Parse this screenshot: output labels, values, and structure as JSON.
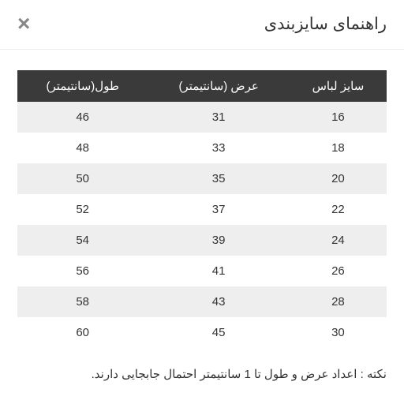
{
  "header": {
    "title": "راهنمای سایزبندی",
    "close_label": "×"
  },
  "table": {
    "columns": [
      "سایز لباس",
      "عرض (سانتیمتر)",
      "طول(سانتیمتر)"
    ],
    "rows": [
      [
        "16",
        "31",
        "46"
      ],
      [
        "18",
        "33",
        "48"
      ],
      [
        "20",
        "35",
        "50"
      ],
      [
        "22",
        "37",
        "52"
      ],
      [
        "24",
        "39",
        "54"
      ],
      [
        "26",
        "41",
        "56"
      ],
      [
        "28",
        "43",
        "58"
      ],
      [
        "30",
        "45",
        "60"
      ]
    ],
    "header_bg": "#3a3a3a",
    "header_color": "#ffffff",
    "row_odd_bg": "#eeeeee",
    "row_even_bg": "#ffffff",
    "text_color": "#333333",
    "font_size": 15
  },
  "note": "نکته : اعداد عرض و طول تا 1 سانتیمتر احتمال جابجایی دارند."
}
